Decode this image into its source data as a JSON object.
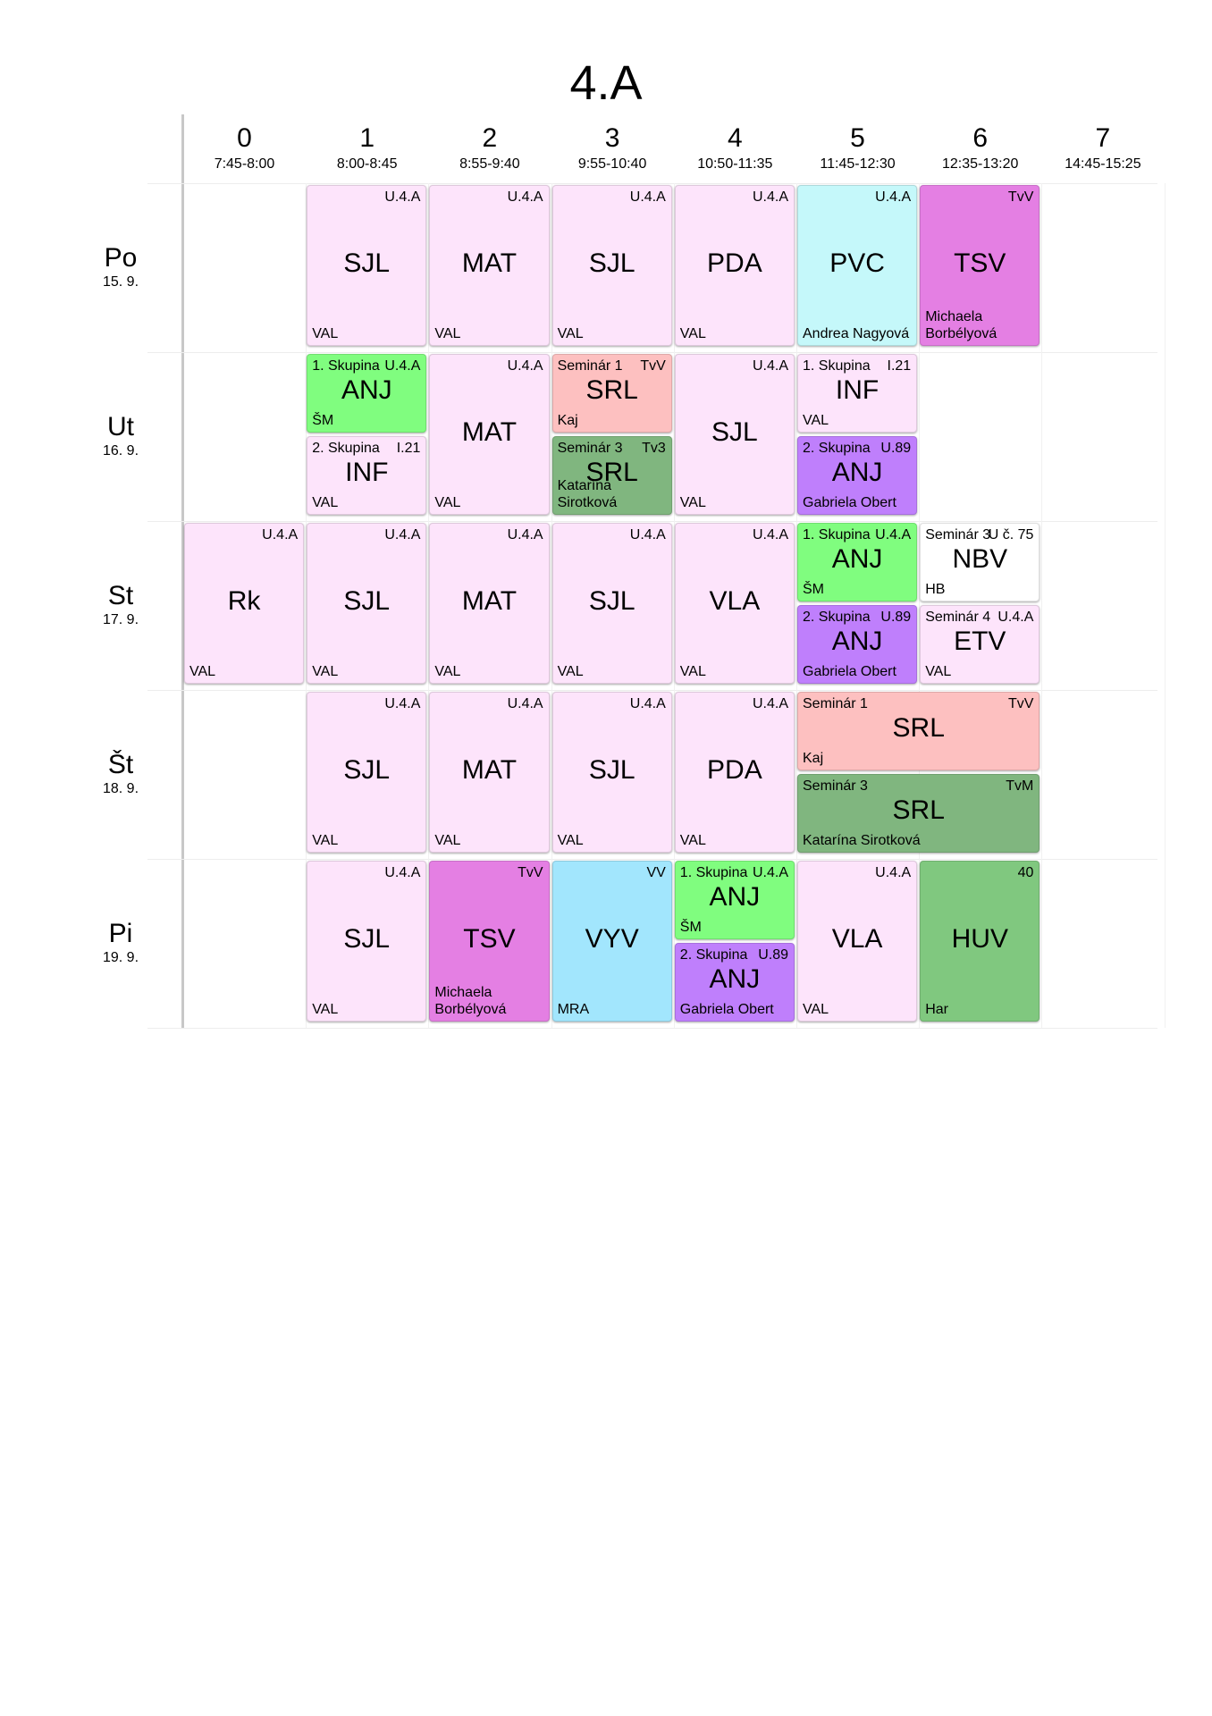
{
  "title": "4.A",
  "periods": [
    {
      "num": "0",
      "time": "7:45-8:00"
    },
    {
      "num": "1",
      "time": "8:00-8:45"
    },
    {
      "num": "2",
      "time": "8:55-9:40"
    },
    {
      "num": "3",
      "time": "9:55-10:40"
    },
    {
      "num": "4",
      "time": "10:50-11:35"
    },
    {
      "num": "5",
      "time": "11:45-12:30"
    },
    {
      "num": "6",
      "time": "12:35-13:20"
    },
    {
      "num": "7",
      "time": "14:45-15:25"
    }
  ],
  "days": [
    {
      "name": "Po",
      "date": "15. 9."
    },
    {
      "name": "Ut",
      "date": "16. 9."
    },
    {
      "name": "St",
      "date": "17. 9."
    },
    {
      "name": "Št",
      "date": "18. 9."
    },
    {
      "name": "Pi",
      "date": "19. 9."
    }
  ],
  "colors": {
    "pink": "#fde4fb",
    "cyan": "#c5f8fa",
    "magenta": "#e47fe3",
    "green": "#80fd7f",
    "salmon": "#fdc0c0",
    "dgreen": "#80b67f",
    "purple": "#bf7ffc",
    "white": "#ffffff",
    "sky": "#a2e6fd",
    "hgreen": "#80c87f"
  },
  "lessons": [
    {
      "day": 0,
      "period": 1,
      "span": 1,
      "half": "full",
      "color": "pink",
      "subject": "SJL",
      "room": "U.4.A",
      "group": "",
      "teacher": "VAL"
    },
    {
      "day": 0,
      "period": 2,
      "span": 1,
      "half": "full",
      "color": "pink",
      "subject": "MAT",
      "room": "U.4.A",
      "group": "",
      "teacher": "VAL"
    },
    {
      "day": 0,
      "period": 3,
      "span": 1,
      "half": "full",
      "color": "pink",
      "subject": "SJL",
      "room": "U.4.A",
      "group": "",
      "teacher": "VAL"
    },
    {
      "day": 0,
      "period": 4,
      "span": 1,
      "half": "full",
      "color": "pink",
      "subject": "PDA",
      "room": "U.4.A",
      "group": "",
      "teacher": "VAL"
    },
    {
      "day": 0,
      "period": 5,
      "span": 1,
      "half": "full",
      "color": "cyan",
      "subject": "PVC",
      "room": "U.4.A",
      "group": "",
      "teacher": "Andrea Nagyová"
    },
    {
      "day": 0,
      "period": 6,
      "span": 1,
      "half": "full",
      "color": "magenta",
      "subject": "TSV",
      "room": "TvV",
      "group": "",
      "teacher": "Michaela Borbélyová"
    },
    {
      "day": 1,
      "period": 1,
      "span": 1,
      "half": "top",
      "color": "green",
      "subject": "ANJ",
      "room": "U.4.A",
      "group": "1. Skupina",
      "teacher": "ŠM"
    },
    {
      "day": 1,
      "period": 1,
      "span": 1,
      "half": "bottom",
      "color": "pink",
      "subject": "INF",
      "room": "I.21",
      "group": "2. Skupina",
      "teacher": "VAL"
    },
    {
      "day": 1,
      "period": 2,
      "span": 1,
      "half": "full",
      "color": "pink",
      "subject": "MAT",
      "room": "U.4.A",
      "group": "",
      "teacher": "VAL"
    },
    {
      "day": 1,
      "period": 3,
      "span": 1,
      "half": "top",
      "color": "salmon",
      "subject": "SRL",
      "room": "TvV",
      "group": "Seminár 1",
      "teacher": "Kaj"
    },
    {
      "day": 1,
      "period": 3,
      "span": 1,
      "half": "bottom",
      "color": "dgreen",
      "subject": "SRL",
      "room": "Tv3",
      "group": "Seminár 3",
      "teacher": "Katarína Sirotková"
    },
    {
      "day": 1,
      "period": 4,
      "span": 1,
      "half": "full",
      "color": "pink",
      "subject": "SJL",
      "room": "U.4.A",
      "group": "",
      "teacher": "VAL"
    },
    {
      "day": 1,
      "period": 5,
      "span": 1,
      "half": "top",
      "color": "pink",
      "subject": "INF",
      "room": "I.21",
      "group": "1. Skupina",
      "teacher": "VAL"
    },
    {
      "day": 1,
      "period": 5,
      "span": 1,
      "half": "bottom",
      "color": "purple",
      "subject": "ANJ",
      "room": "U.89",
      "group": "2. Skupina",
      "teacher": "Gabriela Obert"
    },
    {
      "day": 2,
      "period": 0,
      "span": 1,
      "half": "full",
      "color": "pink",
      "subject": "Rk",
      "room": "U.4.A",
      "group": "",
      "teacher": "VAL"
    },
    {
      "day": 2,
      "period": 1,
      "span": 1,
      "half": "full",
      "color": "pink",
      "subject": "SJL",
      "room": "U.4.A",
      "group": "",
      "teacher": "VAL"
    },
    {
      "day": 2,
      "period": 2,
      "span": 1,
      "half": "full",
      "color": "pink",
      "subject": "MAT",
      "room": "U.4.A",
      "group": "",
      "teacher": "VAL"
    },
    {
      "day": 2,
      "period": 3,
      "span": 1,
      "half": "full",
      "color": "pink",
      "subject": "SJL",
      "room": "U.4.A",
      "group": "",
      "teacher": "VAL"
    },
    {
      "day": 2,
      "period": 4,
      "span": 1,
      "half": "full",
      "color": "pink",
      "subject": "VLA",
      "room": "U.4.A",
      "group": "",
      "teacher": "VAL"
    },
    {
      "day": 2,
      "period": 5,
      "span": 1,
      "half": "top",
      "color": "green",
      "subject": "ANJ",
      "room": "U.4.A",
      "group": "1. Skupina",
      "teacher": "ŠM"
    },
    {
      "day": 2,
      "period": 5,
      "span": 1,
      "half": "bottom",
      "color": "purple",
      "subject": "ANJ",
      "room": "U.89",
      "group": "2. Skupina",
      "teacher": "Gabriela Obert"
    },
    {
      "day": 2,
      "period": 6,
      "span": 1,
      "half": "top",
      "color": "white",
      "subject": "NBV",
      "room": "U č. 75",
      "group": "Seminár 3",
      "teacher": "HB"
    },
    {
      "day": 2,
      "period": 6,
      "span": 1,
      "half": "bottom",
      "color": "pink",
      "subject": "ETV",
      "room": "U.4.A",
      "group": "Seminár 4",
      "teacher": "VAL"
    },
    {
      "day": 3,
      "period": 1,
      "span": 1,
      "half": "full",
      "color": "pink",
      "subject": "SJL",
      "room": "U.4.A",
      "group": "",
      "teacher": "VAL"
    },
    {
      "day": 3,
      "period": 2,
      "span": 1,
      "half": "full",
      "color": "pink",
      "subject": "MAT",
      "room": "U.4.A",
      "group": "",
      "teacher": "VAL"
    },
    {
      "day": 3,
      "period": 3,
      "span": 1,
      "half": "full",
      "color": "pink",
      "subject": "SJL",
      "room": "U.4.A",
      "group": "",
      "teacher": "VAL"
    },
    {
      "day": 3,
      "period": 4,
      "span": 1,
      "half": "full",
      "color": "pink",
      "subject": "PDA",
      "room": "U.4.A",
      "group": "",
      "teacher": "VAL"
    },
    {
      "day": 3,
      "period": 5,
      "span": 2,
      "half": "top",
      "color": "salmon",
      "subject": "SRL",
      "room": "TvV",
      "group": "Seminár 1",
      "teacher": "Kaj"
    },
    {
      "day": 3,
      "period": 5,
      "span": 2,
      "half": "bottom",
      "color": "dgreen",
      "subject": "SRL",
      "room": "TvM",
      "group": "Seminár 3",
      "teacher": "Katarína Sirotková"
    },
    {
      "day": 4,
      "period": 1,
      "span": 1,
      "half": "full",
      "color": "pink",
      "subject": "SJL",
      "room": "U.4.A",
      "group": "",
      "teacher": "VAL"
    },
    {
      "day": 4,
      "period": 2,
      "span": 1,
      "half": "full",
      "color": "magenta",
      "subject": "TSV",
      "room": "TvV",
      "group": "",
      "teacher": "Michaela Borbélyová"
    },
    {
      "day": 4,
      "period": 3,
      "span": 1,
      "half": "full",
      "color": "sky",
      "subject": "VYV",
      "room": "VV",
      "group": "",
      "teacher": "MRA"
    },
    {
      "day": 4,
      "period": 4,
      "span": 1,
      "half": "top",
      "color": "green",
      "subject": "ANJ",
      "room": "U.4.A",
      "group": "1. Skupina",
      "teacher": "ŠM"
    },
    {
      "day": 4,
      "period": 4,
      "span": 1,
      "half": "bottom",
      "color": "purple",
      "subject": "ANJ",
      "room": "U.89",
      "group": "2. Skupina",
      "teacher": "Gabriela Obert"
    },
    {
      "day": 4,
      "period": 5,
      "span": 1,
      "half": "full",
      "color": "pink",
      "subject": "VLA",
      "room": "U.4.A",
      "group": "",
      "teacher": "VAL"
    },
    {
      "day": 4,
      "period": 6,
      "span": 1,
      "half": "full",
      "color": "hgreen",
      "subject": "HUV",
      "room": "40",
      "group": "",
      "teacher": "Har"
    }
  ]
}
